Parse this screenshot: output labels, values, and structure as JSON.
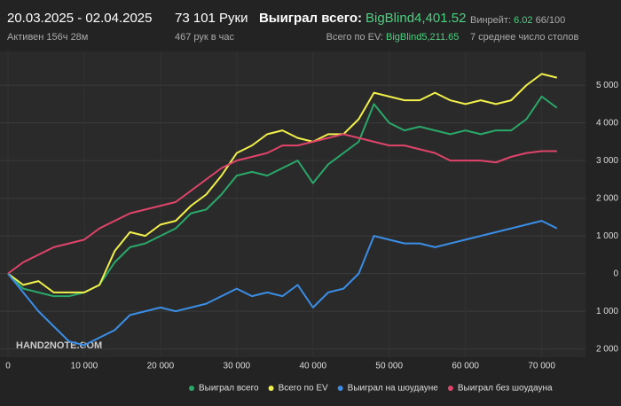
{
  "header": {
    "period": "20.03.2025 - 02.04.2025",
    "active": "Активен 156ч 28м",
    "hands": "73 101 Руки",
    "hands_per_hour": "467 рук в час",
    "won_label": "Выиграл всего:",
    "won_value": "BigBlind4,401.52",
    "ev_label": "Всего по EV:",
    "ev_value": "BigBlind5,211.65",
    "winrate_label": "Винрейт:",
    "winrate_value": "6.02",
    "winrate_unit": "66/100",
    "tables": "7 среднее число столов"
  },
  "watermark": "HAND2NOTE.COM",
  "chart_data": {
    "type": "line",
    "x": [
      0,
      2000,
      4000,
      6000,
      8000,
      10000,
      12000,
      14000,
      16000,
      18000,
      20000,
      22000,
      24000,
      26000,
      28000,
      30000,
      32000,
      34000,
      36000,
      38000,
      40000,
      42000,
      44000,
      46000,
      48000,
      50000,
      52000,
      54000,
      56000,
      58000,
      60000,
      62000,
      64000,
      66000,
      68000,
      70000,
      72000
    ],
    "series": [
      {
        "name": "Выиграл всего",
        "color": "#2aa86a",
        "values": [
          0,
          -400,
          -500,
          -600,
          -600,
          -500,
          -300,
          300,
          700,
          800,
          1000,
          1200,
          1600,
          1700,
          2100,
          2600,
          2700,
          2600,
          2800,
          3000,
          2400,
          2900,
          3200,
          3500,
          4500,
          4000,
          3800,
          3900,
          3800,
          3700,
          3800,
          3700,
          3800,
          3800,
          4100,
          4700,
          4400
        ]
      },
      {
        "name": "Всего по EV",
        "color": "#f2f04a",
        "values": [
          0,
          -300,
          -200,
          -500,
          -500,
          -500,
          -300,
          600,
          1100,
          1000,
          1300,
          1400,
          1800,
          2100,
          2600,
          3200,
          3400,
          3700,
          3800,
          3600,
          3500,
          3700,
          3700,
          4100,
          4800,
          4700,
          4600,
          4600,
          4800,
          4600,
          4500,
          4600,
          4500,
          4600,
          5000,
          5300,
          5200
        ]
      },
      {
        "name": "Выиграл на шоудауне",
        "color": "#3a8ee6",
        "values": [
          0,
          -500,
          -1000,
          -1400,
          -1800,
          -1900,
          -1700,
          -1500,
          -1100,
          -1000,
          -900,
          -1000,
          -900,
          -800,
          -600,
          -400,
          -600,
          -500,
          -600,
          -300,
          -900,
          -500,
          -400,
          0,
          1000,
          900,
          800,
          800,
          700,
          800,
          900,
          1000,
          1100,
          1200,
          1300,
          1400,
          1200
        ]
      },
      {
        "name": "Выиграл без шоудауна",
        "color": "#e0446a",
        "values": [
          0,
          300,
          500,
          700,
          800,
          900,
          1200,
          1400,
          1600,
          1700,
          1800,
          1900,
          2200,
          2500,
          2800,
          3000,
          3100,
          3200,
          3400,
          3400,
          3500,
          3600,
          3700,
          3600,
          3500,
          3400,
          3400,
          3300,
          3200,
          3000,
          3000,
          3000,
          2950,
          3100,
          3200,
          3250,
          3250
        ]
      }
    ],
    "xlim": [
      0,
      74000
    ],
    "ylim": [
      -2150,
      5850
    ],
    "xticks": [
      0,
      {
        "value": 10000,
        "label": "10 000"
      },
      {
        "value": 20000,
        "label": "20 000"
      },
      {
        "value": 30000,
        "label": "30 000"
      },
      {
        "value": 40000,
        "label": "40 000"
      },
      {
        "value": 50000,
        "label": "50 000"
      },
      {
        "value": 60000,
        "label": "60 000"
      },
      {
        "value": 70000,
        "label": "70 000"
      }
    ],
    "yticks": [
      {
        "value": -2000,
        "label": "2 000"
      },
      {
        "value": -1000,
        "label": "1 000"
      },
      0,
      {
        "value": 1000,
        "label": "1 000"
      },
      {
        "value": 2000,
        "label": "2 000"
      },
      {
        "value": 3000,
        "label": "3 000"
      },
      {
        "value": 4000,
        "label": "4 000"
      },
      {
        "value": 5000,
        "label": "5 000"
      }
    ],
    "grid": true
  }
}
